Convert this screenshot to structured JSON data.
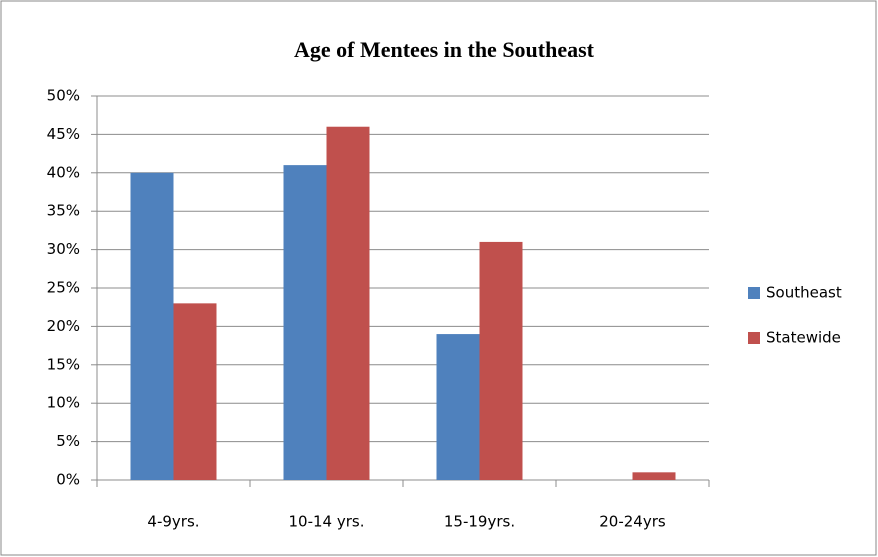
{
  "chart_data": {
    "type": "bar",
    "title": "Age of Mentees in the Southeast",
    "categories": [
      "4-9yrs.",
      "10-14 yrs.",
      "15-19yrs.",
      "20-24yrs"
    ],
    "series": [
      {
        "name": "Southeast",
        "color": "#4f81bd",
        "values": [
          40,
          41,
          19,
          0
        ]
      },
      {
        "name": "Statewide",
        "color": "#c0504d",
        "values": [
          23,
          46,
          31,
          1
        ]
      }
    ],
    "ylim": [
      0,
      50
    ],
    "yticks": [
      {
        "value": 0,
        "label": "0%"
      },
      {
        "value": 5,
        "label": "5%"
      },
      {
        "value": 10,
        "label": "10%"
      },
      {
        "value": 15,
        "label": "15%"
      },
      {
        "value": 20,
        "label": "20%"
      },
      {
        "value": 25,
        "label": "25%"
      },
      {
        "value": 30,
        "label": "30%"
      },
      {
        "value": 35,
        "label": "35%"
      },
      {
        "value": 40,
        "label": "40%"
      },
      {
        "value": 45,
        "label": "45%"
      },
      {
        "value": 50,
        "label": "50%"
      }
    ],
    "grid": true,
    "legend": "right"
  }
}
